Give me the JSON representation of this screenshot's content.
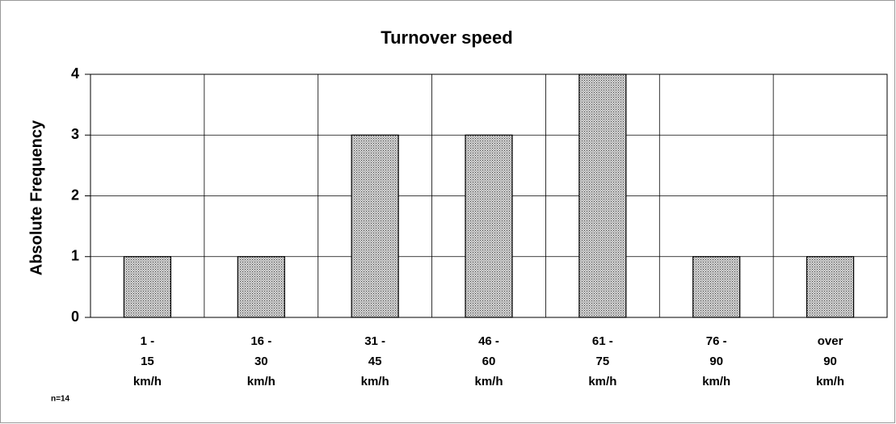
{
  "chart_data": {
    "type": "bar",
    "title": "Turnover speed",
    "y_label": "Absolute Frequency",
    "categories": [
      [
        "1 -",
        "15",
        "km/h"
      ],
      [
        "16 -",
        "30",
        "km/h"
      ],
      [
        "31 -",
        "45",
        "km/h"
      ],
      [
        "46 -",
        "60",
        "km/h"
      ],
      [
        "61 -",
        "75",
        "km/h"
      ],
      [
        "76 -",
        "90",
        "km/h"
      ],
      [
        "over",
        "90",
        "km/h"
      ]
    ],
    "values": [
      1,
      1,
      3,
      3,
      4,
      1,
      1
    ],
    "color": "#a8a8a8",
    "ylim": [
      0,
      4
    ],
    "yticks": [
      0,
      1,
      2,
      3,
      4
    ],
    "grid": true,
    "annotation": "n=14"
  }
}
